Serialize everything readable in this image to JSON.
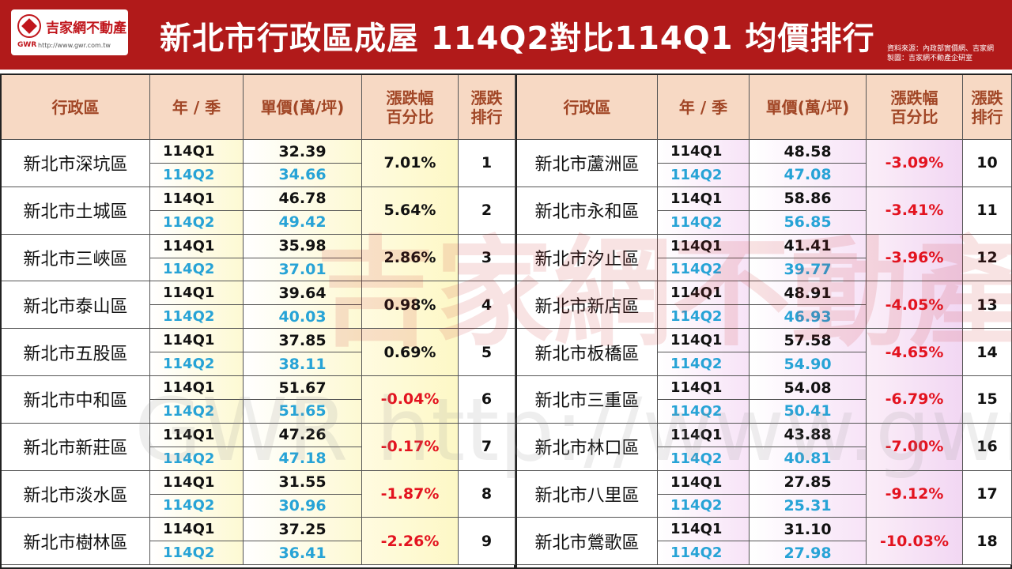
{
  "header": {
    "logo_text": "吉家網不動產",
    "logo_gwr": "GWR",
    "logo_url": "http://www.gwr.com.tw",
    "title": "新北市行政區成屋 114Q2對比114Q1 均價排行",
    "source_line1": "資料來源：內政部實價網、吉家網",
    "source_line2": "製圖：吉家網不動產企研室"
  },
  "columns": {
    "district": "行政區",
    "period": "年 / 季",
    "price": "單價(萬/坪)",
    "change_l1": "漲跌幅",
    "change_l2": "百分比",
    "rank_l1": "漲跌",
    "rank_l2": "排行"
  },
  "watermark": {
    "brand": "吉家網不動產",
    "url": "GWR http://www.gwr.com.tw"
  },
  "colors": {
    "header_bg": "#b11a1a",
    "q2_text": "#27a3d6",
    "negative": "#e3131f"
  },
  "left": [
    {
      "district": "新北市深坑區",
      "q1": "114Q1",
      "p1": "32.39",
      "q2": "114Q2",
      "p2": "34.66",
      "change": "7.01%",
      "rank": "1",
      "neg": false
    },
    {
      "district": "新北市土城區",
      "q1": "114Q1",
      "p1": "46.78",
      "q2": "114Q2",
      "p2": "49.42",
      "change": "5.64%",
      "rank": "2",
      "neg": false
    },
    {
      "district": "新北市三峽區",
      "q1": "114Q1",
      "p1": "35.98",
      "q2": "114Q2",
      "p2": "37.01",
      "change": "2.86%",
      "rank": "3",
      "neg": false
    },
    {
      "district": "新北市泰山區",
      "q1": "114Q1",
      "p1": "39.64",
      "q2": "114Q2",
      "p2": "40.03",
      "change": "0.98%",
      "rank": "4",
      "neg": false
    },
    {
      "district": "新北市五股區",
      "q1": "114Q1",
      "p1": "37.85",
      "q2": "114Q2",
      "p2": "38.11",
      "change": "0.69%",
      "rank": "5",
      "neg": false
    },
    {
      "district": "新北市中和區",
      "q1": "114Q1",
      "p1": "51.67",
      "q2": "114Q2",
      "p2": "51.65",
      "change": "-0.04%",
      "rank": "6",
      "neg": true
    },
    {
      "district": "新北市新莊區",
      "q1": "114Q1",
      "p1": "47.26",
      "q2": "114Q2",
      "p2": "47.18",
      "change": "-0.17%",
      "rank": "7",
      "neg": true
    },
    {
      "district": "新北市淡水區",
      "q1": "114Q1",
      "p1": "31.55",
      "q2": "114Q2",
      "p2": "30.96",
      "change": "-1.87%",
      "rank": "8",
      "neg": true
    },
    {
      "district": "新北市樹林區",
      "q1": "114Q1",
      "p1": "37.25",
      "q2": "114Q2",
      "p2": "36.41",
      "change": "-2.26%",
      "rank": "9",
      "neg": true
    }
  ],
  "right": [
    {
      "district": "新北市蘆洲區",
      "q1": "114Q1",
      "p1": "48.58",
      "q2": "114Q2",
      "p2": "47.08",
      "change": "-3.09%",
      "rank": "10",
      "neg": true
    },
    {
      "district": "新北市永和區",
      "q1": "114Q1",
      "p1": "58.86",
      "q2": "114Q2",
      "p2": "56.85",
      "change": "-3.41%",
      "rank": "11",
      "neg": true
    },
    {
      "district": "新北市汐止區",
      "q1": "114Q1",
      "p1": "41.41",
      "q2": "114Q2",
      "p2": "39.77",
      "change": "-3.96%",
      "rank": "12",
      "neg": true
    },
    {
      "district": "新北市新店區",
      "q1": "114Q1",
      "p1": "48.91",
      "q2": "114Q2",
      "p2": "46.93",
      "change": "-4.05%",
      "rank": "13",
      "neg": true
    },
    {
      "district": "新北市板橋區",
      "q1": "114Q1",
      "p1": "57.58",
      "q2": "114Q2",
      "p2": "54.90",
      "change": "-4.65%",
      "rank": "14",
      "neg": true
    },
    {
      "district": "新北市三重區",
      "q1": "114Q1",
      "p1": "54.08",
      "q2": "114Q2",
      "p2": "50.41",
      "change": "-6.79%",
      "rank": "15",
      "neg": true
    },
    {
      "district": "新北市林口區",
      "q1": "114Q1",
      "p1": "43.88",
      "q2": "114Q2",
      "p2": "40.81",
      "change": "-7.00%",
      "rank": "16",
      "neg": true
    },
    {
      "district": "新北市八里區",
      "q1": "114Q1",
      "p1": "27.85",
      "q2": "114Q2",
      "p2": "25.31",
      "change": "-9.12%",
      "rank": "17",
      "neg": true
    },
    {
      "district": "新北市鶯歌區",
      "q1": "114Q1",
      "p1": "31.10",
      "q2": "114Q2",
      "p2": "27.98",
      "change": "-10.03%",
      "rank": "18",
      "neg": true
    }
  ]
}
